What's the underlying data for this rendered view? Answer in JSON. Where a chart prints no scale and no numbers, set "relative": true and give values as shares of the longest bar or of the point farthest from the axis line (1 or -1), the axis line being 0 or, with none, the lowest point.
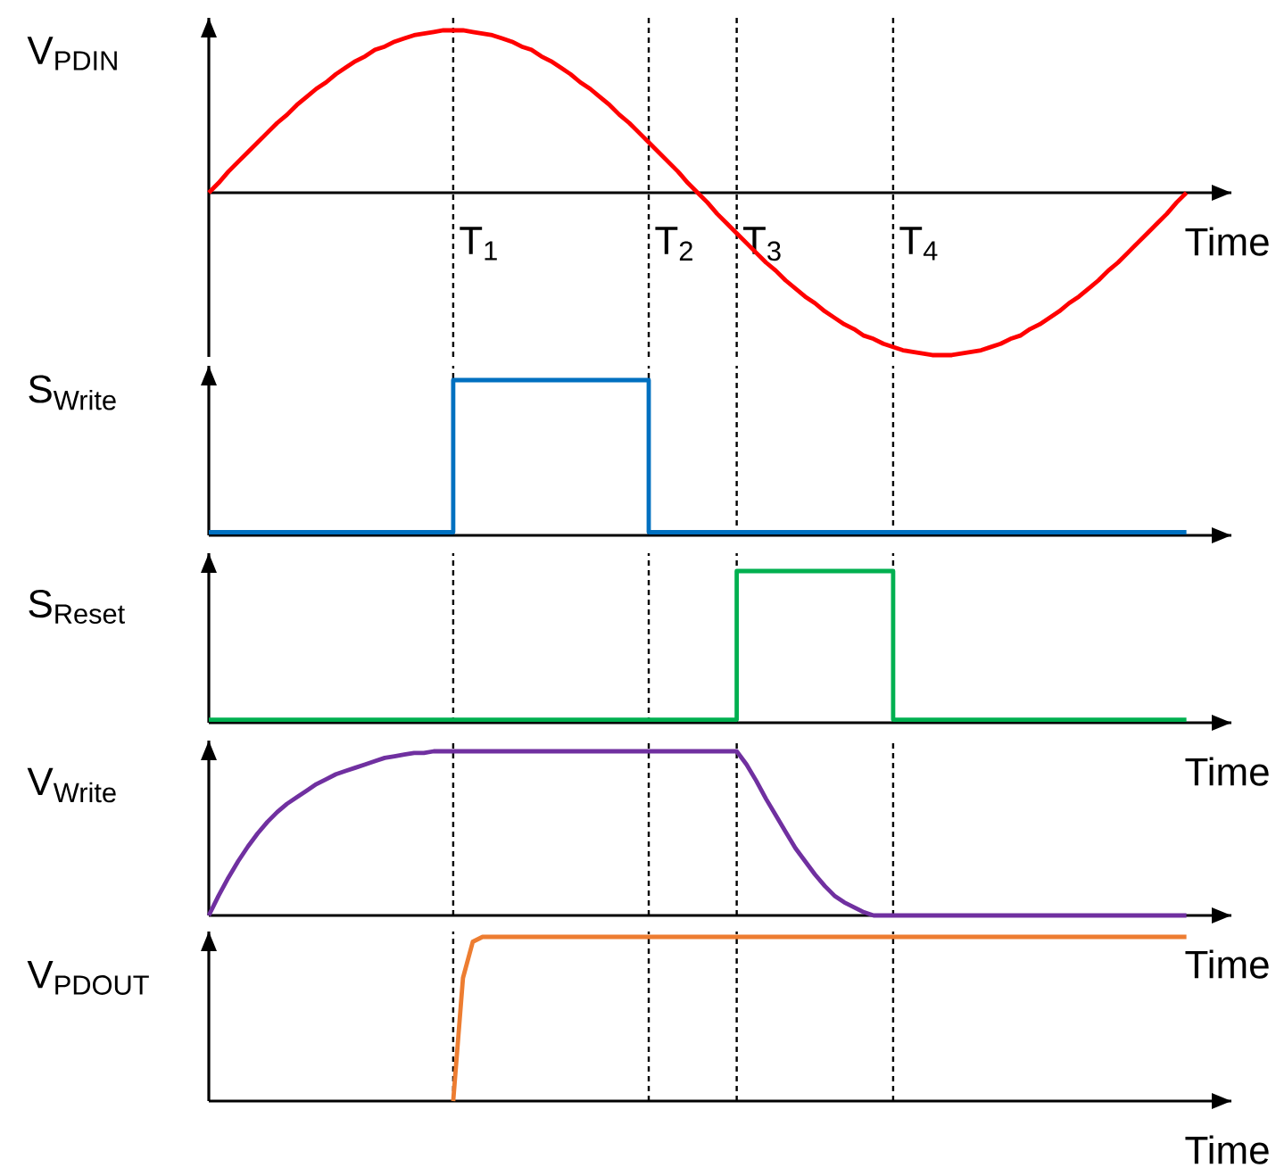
{
  "chart_data": [
    {
      "type": "line",
      "relative": true,
      "grid": "x",
      "ylabel": "V$_{PDIN}$",
      "xlabel": "Time",
      "annotations": [
        "T$_{1}$",
        "T$_{2}$",
        "T$_{3}$",
        "T$_{4}$"
      ],
      "categories": [
        null,
        null,
        null,
        null,
        null,
        null,
        null,
        null,
        null,
        null,
        null,
        null,
        null,
        null,
        null,
        null,
        null,
        null,
        null,
        null,
        null,
        null,
        null,
        null,
        null,
        null,
        null,
        null,
        null,
        null,
        null,
        null,
        null,
        null,
        null,
        null,
        null,
        null,
        null,
        null,
        null,
        null,
        null,
        null,
        null,
        null,
        null,
        null,
        null,
        null,
        null,
        null,
        null,
        null,
        null,
        null,
        null,
        null,
        null,
        null,
        null,
        null,
        null,
        null,
        null,
        null,
        null,
        null,
        null,
        null,
        null,
        null,
        null,
        null,
        null,
        null,
        null,
        null,
        null,
        null,
        null,
        null,
        null,
        null,
        null,
        null,
        null,
        null,
        null,
        null,
        null,
        null,
        null,
        null,
        null,
        null,
        null,
        null,
        null,
        null,
        null
      ],
      "series": [
        {
          "color": "#ff0000",
          "values": [
            0,
            0.06,
            0.13,
            0.19,
            0.25,
            0.31,
            0.37,
            0.43,
            0.48,
            0.54,
            0.59,
            0.64,
            0.68,
            0.73,
            0.77,
            0.81,
            0.84,
            0.88,
            0.9,
            0.93,
            0.95,
            0.97,
            0.98,
            0.99,
            1,
            1,
            1,
            0.99,
            0.98,
            0.97,
            0.95,
            0.93,
            0.9,
            0.88,
            0.84,
            0.81,
            0.77,
            0.73,
            0.68,
            0.64,
            0.59,
            0.54,
            0.48,
            0.43,
            0.37,
            0.31,
            0.25,
            0.19,
            0.13,
            0.06,
            0,
            -0.06,
            -0.13,
            -0.19,
            -0.25,
            -0.31,
            -0.37,
            -0.43,
            -0.48,
            -0.54,
            -0.59,
            -0.64,
            -0.68,
            -0.73,
            -0.77,
            -0.81,
            -0.84,
            -0.88,
            -0.9,
            -0.93,
            -0.95,
            -0.97,
            -0.98,
            -0.99,
            -1,
            -1,
            -1,
            -0.99,
            -0.98,
            -0.97,
            -0.95,
            -0.93,
            -0.9,
            -0.88,
            -0.84,
            -0.81,
            -0.77,
            -0.73,
            -0.68,
            -0.64,
            -0.59,
            -0.54,
            -0.48,
            -0.43,
            -0.37,
            -0.31,
            -0.25,
            -0.19,
            -0.13,
            -0.06,
            0
          ]
        }
      ]
    },
    {
      "type": "step",
      "relative": true,
      "grid": "x",
      "ylabel": "S$_{Write}$",
      "categories": [
        null,
        null,
        null,
        null,
        null,
        null,
        null,
        null,
        null,
        null,
        null,
        null,
        null,
        null,
        null,
        null,
        null,
        null,
        null,
        null,
        null,
        null,
        null,
        null,
        null,
        null,
        null,
        null,
        null,
        null,
        null,
        null,
        null,
        null,
        null,
        null,
        null,
        null,
        null,
        null,
        null,
        null,
        null,
        null,
        null,
        null,
        null,
        null,
        null,
        null,
        null,
        null,
        null,
        null,
        null,
        null,
        null,
        null,
        null,
        null,
        null,
        null,
        null,
        null,
        null,
        null,
        null,
        null,
        null,
        null,
        null,
        null,
        null,
        null,
        null,
        null,
        null,
        null,
        null,
        null,
        null,
        null,
        null,
        null,
        null,
        null,
        null,
        null,
        null,
        null,
        null,
        null,
        null,
        null,
        null,
        null,
        null,
        null,
        null,
        null,
        null
      ],
      "series": [
        {
          "color": "#0070c0",
          "values": [
            0.02,
            0.02,
            0.02,
            0.02,
            0.02,
            0.02,
            0.02,
            0.02,
            0.02,
            0.02,
            0.02,
            0.02,
            0.02,
            0.02,
            0.02,
            0.02,
            0.02,
            0.02,
            0.02,
            0.02,
            0.02,
            0.02,
            0.02,
            0.02,
            0.02,
            1,
            1,
            1,
            1,
            1,
            1,
            1,
            1,
            1,
            1,
            1,
            1,
            1,
            1,
            1,
            1,
            1,
            1,
            1,
            1,
            0.02,
            0.02,
            0.02,
            0.02,
            0.02,
            0.02,
            0.02,
            0.02,
            0.02,
            0.02,
            0.02,
            0.02,
            0.02,
            0.02,
            0.02,
            0.02,
            0.02,
            0.02,
            0.02,
            0.02,
            0.02,
            0.02,
            0.02,
            0.02,
            0.02,
            0.02,
            0.02,
            0.02,
            0.02,
            0.02,
            0.02,
            0.02,
            0.02,
            0.02,
            0.02,
            0.02,
            0.02,
            0.02,
            0.02,
            0.02,
            0.02,
            0.02,
            0.02,
            0.02,
            0.02,
            0.02,
            0.02,
            0.02,
            0.02,
            0.02,
            0.02,
            0.02,
            0.02,
            0.02,
            0.02,
            0.02
          ]
        }
      ]
    },
    {
      "type": "step",
      "relative": true,
      "grid": "x",
      "ylabel": "S$_{Reset}$",
      "xlabel": "Time",
      "categories": [
        null,
        null,
        null,
        null,
        null,
        null,
        null,
        null,
        null,
        null,
        null,
        null,
        null,
        null,
        null,
        null,
        null,
        null,
        null,
        null,
        null,
        null,
        null,
        null,
        null,
        null,
        null,
        null,
        null,
        null,
        null,
        null,
        null,
        null,
        null,
        null,
        null,
        null,
        null,
        null,
        null,
        null,
        null,
        null,
        null,
        null,
        null,
        null,
        null,
        null,
        null,
        null,
        null,
        null,
        null,
        null,
        null,
        null,
        null,
        null,
        null,
        null,
        null,
        null,
        null,
        null,
        null,
        null,
        null,
        null,
        null,
        null,
        null,
        null,
        null,
        null,
        null,
        null,
        null,
        null,
        null,
        null,
        null,
        null,
        null,
        null,
        null,
        null,
        null,
        null,
        null,
        null,
        null,
        null,
        null,
        null,
        null,
        null,
        null,
        null,
        null
      ],
      "series": [
        {
          "color": "#00b050",
          "values": [
            0.02,
            0.02,
            0.02,
            0.02,
            0.02,
            0.02,
            0.02,
            0.02,
            0.02,
            0.02,
            0.02,
            0.02,
            0.02,
            0.02,
            0.02,
            0.02,
            0.02,
            0.02,
            0.02,
            0.02,
            0.02,
            0.02,
            0.02,
            0.02,
            0.02,
            0.02,
            0.02,
            0.02,
            0.02,
            0.02,
            0.02,
            0.02,
            0.02,
            0.02,
            0.02,
            0.02,
            0.02,
            0.02,
            0.02,
            0.02,
            0.02,
            0.02,
            0.02,
            0.02,
            0.02,
            0.02,
            0.02,
            0.02,
            0.02,
            0.02,
            0.02,
            0.02,
            0.02,
            0.02,
            1,
            1,
            1,
            1,
            1,
            1,
            1,
            1,
            1,
            1,
            1,
            1,
            1,
            1,
            1,
            1,
            0.02,
            0.02,
            0.02,
            0.02,
            0.02,
            0.02,
            0.02,
            0.02,
            0.02,
            0.02,
            0.02,
            0.02,
            0.02,
            0.02,
            0.02,
            0.02,
            0.02,
            0.02,
            0.02,
            0.02,
            0.02,
            0.02,
            0.02,
            0.02,
            0.02,
            0.02,
            0.02,
            0.02,
            0.02,
            0.02,
            0.02
          ]
        }
      ]
    },
    {
      "type": "line",
      "relative": true,
      "grid": "x",
      "ylabel": "V$_{Write}$",
      "xlabel": "Time",
      "categories": [
        null,
        null,
        null,
        null,
        null,
        null,
        null,
        null,
        null,
        null,
        null,
        null,
        null,
        null,
        null,
        null,
        null,
        null,
        null,
        null,
        null,
        null,
        null,
        null,
        null,
        null,
        null,
        null,
        null,
        null,
        null,
        null,
        null,
        null,
        null,
        null,
        null,
        null,
        null,
        null,
        null,
        null,
        null,
        null,
        null,
        null,
        null,
        null,
        null,
        null,
        null,
        null,
        null,
        null,
        null,
        null,
        null,
        null,
        null,
        null,
        null,
        null,
        null,
        null,
        null,
        null,
        null,
        null,
        null,
        null,
        null,
        null,
        null,
        null,
        null,
        null,
        null,
        null,
        null,
        null,
        null,
        null,
        null,
        null,
        null,
        null,
        null,
        null,
        null,
        null,
        null,
        null,
        null,
        null,
        null,
        null,
        null,
        null,
        null,
        null,
        null
      ],
      "series": [
        {
          "color": "#7030a0",
          "values": [
            0,
            0.12,
            0.23,
            0.33,
            0.42,
            0.5,
            0.57,
            0.63,
            0.68,
            0.72,
            0.76,
            0.8,
            0.83,
            0.86,
            0.88,
            0.9,
            0.92,
            0.94,
            0.96,
            0.97,
            0.98,
            0.99,
            0.99,
            1,
            1,
            1,
            1,
            1,
            1,
            1,
            1,
            1,
            1,
            1,
            1,
            1,
            1,
            1,
            1,
            1,
            1,
            1,
            1,
            1,
            1,
            1,
            1,
            1,
            1,
            1,
            1,
            1,
            1,
            1,
            1,
            0.92,
            0.82,
            0.71,
            0.61,
            0.51,
            0.41,
            0.33,
            0.25,
            0.18,
            0.12,
            0.08,
            0.05,
            0.02,
            0,
            0,
            0,
            0,
            0,
            0,
            0,
            0,
            0,
            0,
            0,
            0,
            0,
            0,
            0,
            0,
            0,
            0,
            0,
            0,
            0,
            0,
            0,
            0,
            0,
            0,
            0,
            0,
            0,
            0,
            0,
            0,
            0
          ]
        }
      ]
    },
    {
      "type": "line",
      "relative": true,
      "grid": "x",
      "ylabel": "V$_{PDOUT}$",
      "xlabel": "Time",
      "categories": [
        null,
        null,
        null,
        null,
        null,
        null,
        null,
        null,
        null,
        null,
        null,
        null,
        null,
        null,
        null,
        null,
        null,
        null,
        null,
        null,
        null,
        null,
        null,
        null,
        null,
        null,
        null,
        null,
        null,
        null,
        null,
        null,
        null,
        null,
        null,
        null,
        null,
        null,
        null,
        null,
        null,
        null,
        null,
        null,
        null,
        null,
        null,
        null,
        null,
        null,
        null,
        null,
        null,
        null,
        null,
        null,
        null,
        null,
        null,
        null,
        null,
        null,
        null,
        null,
        null,
        null,
        null,
        null,
        null,
        null,
        null,
        null,
        null,
        null,
        null,
        null,
        null,
        null,
        null,
        null,
        null,
        null,
        null,
        null,
        null,
        null,
        null,
        null,
        null,
        null,
        null,
        null,
        null,
        null,
        null,
        null,
        null,
        null,
        null,
        null,
        null
      ],
      "series": [
        {
          "color": "#ed7d31",
          "values": [
            null,
            null,
            null,
            null,
            null,
            null,
            null,
            null,
            null,
            null,
            null,
            null,
            null,
            null,
            null,
            null,
            null,
            null,
            null,
            null,
            null,
            null,
            null,
            null,
            null,
            0,
            0.75,
            0.97,
            1,
            1,
            1,
            1,
            1,
            1,
            1,
            1,
            1,
            1,
            1,
            1,
            1,
            1,
            1,
            1,
            1,
            1,
            1,
            1,
            1,
            1,
            1,
            1,
            1,
            1,
            1,
            1,
            1,
            1,
            1,
            1,
            1,
            1,
            1,
            1,
            1,
            1,
            1,
            1,
            1,
            1,
            1,
            1,
            1,
            1,
            1,
            1,
            1,
            1,
            1,
            1,
            1,
            1,
            1,
            1,
            1,
            1,
            1,
            1,
            1,
            1,
            1,
            1,
            1,
            1,
            1,
            1,
            1,
            1,
            1,
            1,
            1
          ]
        }
      ]
    }
  ]
}
